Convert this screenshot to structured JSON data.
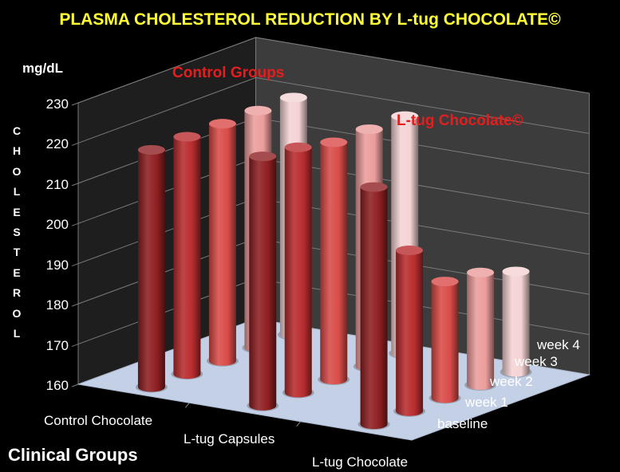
{
  "chart_data": {
    "type": "bar",
    "subtype": "3d-clustered-column",
    "title": "PLASMA CHOLESTEROL REDUCTION BY L-tug CHOCOLATE©",
    "ylabel_unit": "mg/dL",
    "ylabel": "CHOLESTEROL",
    "xlabel": "Clinical Groups",
    "ylim": [
      160,
      230
    ],
    "yticks": [
      "160",
      "170",
      "180",
      "190",
      "200",
      "210",
      "220",
      "230"
    ],
    "categories": [
      "Control Chocolate",
      "L-tug Capsules",
      "L-tug Chocolate"
    ],
    "series": [
      {
        "name": "baseline",
        "values": [
          219,
          222,
          219
        ]
      },
      {
        "name": "week 1",
        "values": [
          219,
          221,
          200
        ]
      },
      {
        "name": "week 2",
        "values": [
          219,
          219,
          189
        ]
      },
      {
        "name": "week 3",
        "values": [
          219,
          219,
          188
        ]
      },
      {
        "name": "week 4",
        "values": [
          219,
          219,
          185
        ]
      }
    ],
    "annotations": [
      "Control Groups",
      "L-tug Chocolate©"
    ],
    "colors": [
      "#8e1f22",
      "#b82c2e",
      "#d94b48",
      "#eb9d9b",
      "#f5d3d4"
    ],
    "grid": true,
    "legend": "depth-axis"
  }
}
